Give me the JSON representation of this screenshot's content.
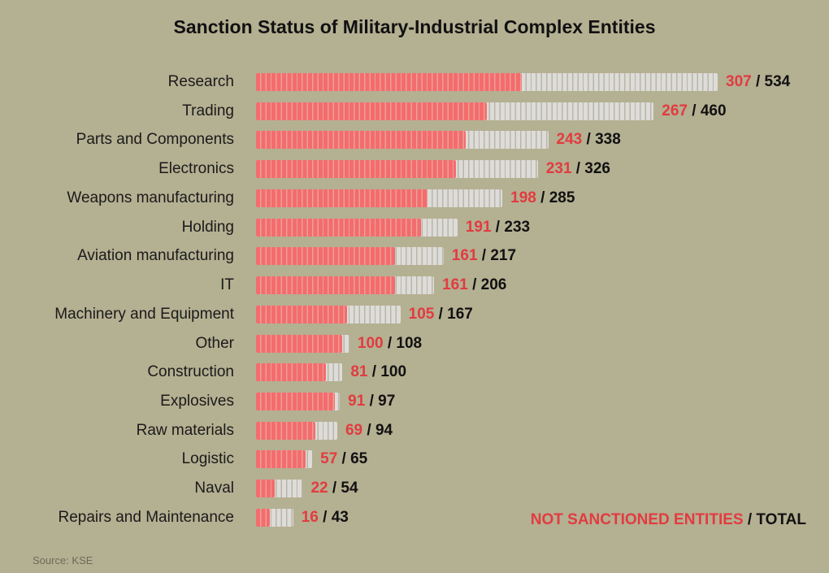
{
  "chart_data": {
    "type": "bar",
    "orientation": "horizontal",
    "stacked": "overlay",
    "title": "Sanction Status of Military-Industrial Complex Entities",
    "categories": [
      "Research",
      "Trading",
      "Parts and Components",
      "Electronics",
      "Weapons manufacturing",
      "Holding",
      "Aviation manufacturing",
      "IT",
      "Machinery and Equipment",
      "Other",
      "Construction",
      "Explosives",
      "Raw materials",
      "Logistic",
      "Naval",
      "Repairs and Maintenance"
    ],
    "series": [
      {
        "name": "NOT SANCTIONED ENTITIES",
        "color": "#f46c6c",
        "values": [
          307,
          267,
          243,
          231,
          198,
          191,
          161,
          161,
          105,
          100,
          81,
          91,
          69,
          57,
          22,
          16
        ]
      },
      {
        "name": "TOTAL",
        "color": "#dedcd8",
        "values": [
          534,
          460,
          338,
          326,
          285,
          233,
          217,
          206,
          167,
          108,
          100,
          97,
          94,
          65,
          54,
          43
        ]
      }
    ],
    "legend": {
      "not_sanctioned": "NOT SANCTIONED ENTITIES",
      "separator": " / ",
      "total": "TOTAL",
      "placement": "bottom-right"
    },
    "grid": false,
    "source": "Source: KSE"
  }
}
